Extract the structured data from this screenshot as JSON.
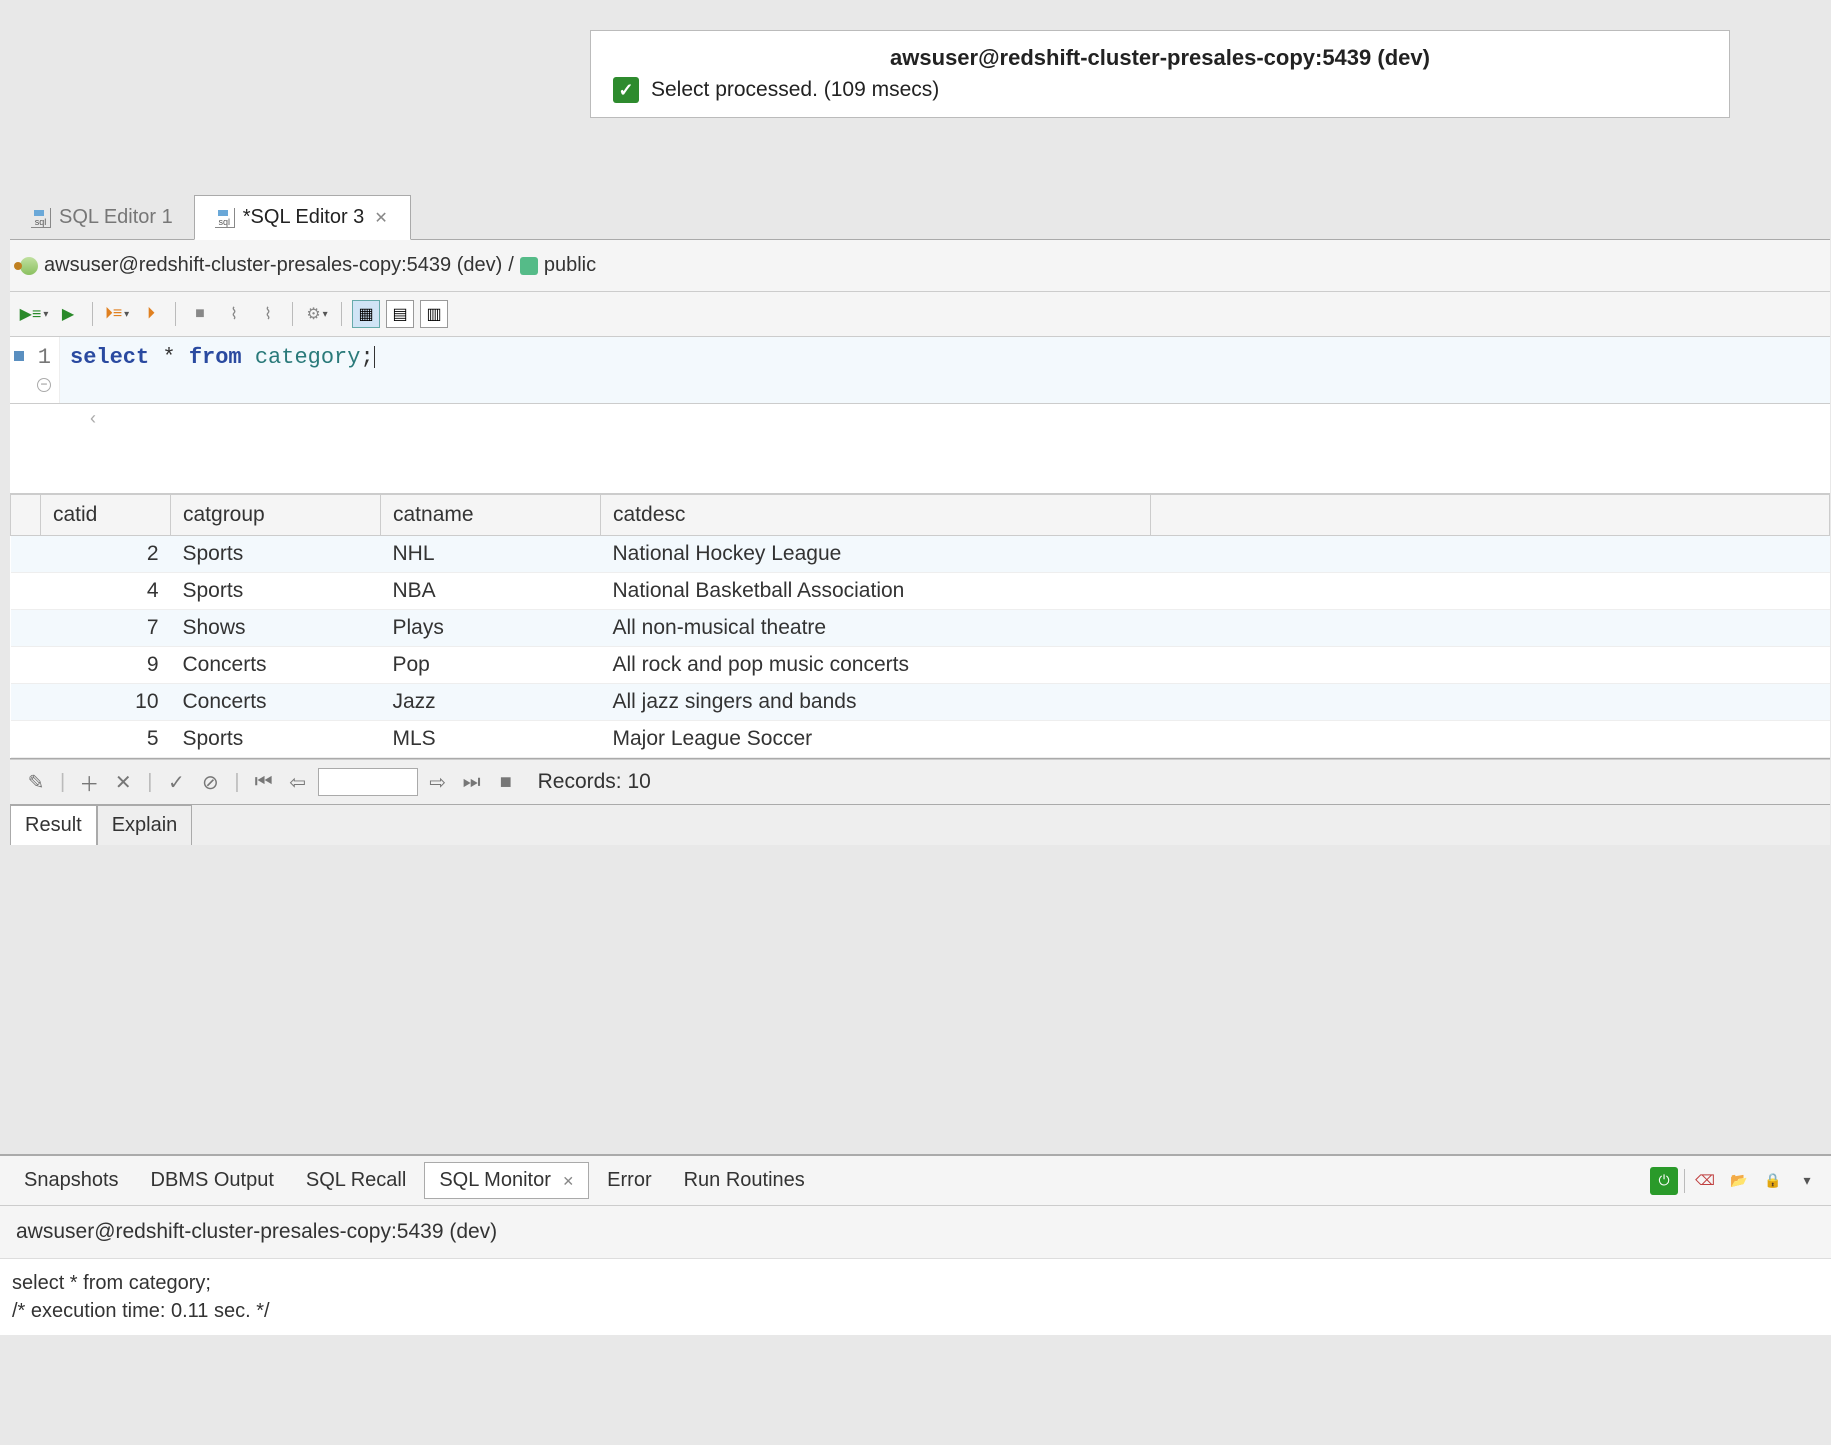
{
  "notification": {
    "title": "awsuser@redshift-cluster-presales-copy:5439 (dev)",
    "message": "Select processed. (109 msecs)"
  },
  "tabs": [
    {
      "label": "SQL Editor 1",
      "active": false
    },
    {
      "label": "*SQL Editor 3",
      "active": true
    }
  ],
  "breadcrumb": {
    "connection": "awsuser@redshift-cluster-presales-copy:5439 (dev)",
    "sep": "/",
    "schema": "public"
  },
  "sql": {
    "line_no": "1",
    "kw_select": "select",
    "star": "*",
    "kw_from": "from",
    "ident": "category",
    "semi": ";"
  },
  "results": {
    "columns": [
      "catid",
      "catgroup",
      "catname",
      "catdesc"
    ],
    "rows": [
      [
        "2",
        "Sports",
        "NHL",
        "National Hockey League"
      ],
      [
        "4",
        "Sports",
        "NBA",
        "National Basketball Association"
      ],
      [
        "7",
        "Shows",
        "Plays",
        "All non-musical theatre"
      ],
      [
        "9",
        "Concerts",
        "Pop",
        "All rock and pop music concerts"
      ],
      [
        "10",
        "Concerts",
        "Jazz",
        "All jazz singers and bands"
      ],
      [
        "5",
        "Sports",
        "MLS",
        "Major League Soccer"
      ]
    ],
    "records_label": "Records: 10"
  },
  "sub_tabs": {
    "result": "Result",
    "explain": "Explain"
  },
  "bottom_tabs": {
    "snapshots": "Snapshots",
    "dbms": "DBMS Output",
    "recall": "SQL Recall",
    "monitor": "SQL Monitor",
    "error": "Error",
    "routines": "Run Routines"
  },
  "monitor": {
    "connection": "awsuser@redshift-cluster-presales-copy:5439 (dev)",
    "line1": "select * from category;",
    "line2": "/* execution time: 0.11 sec. */"
  }
}
